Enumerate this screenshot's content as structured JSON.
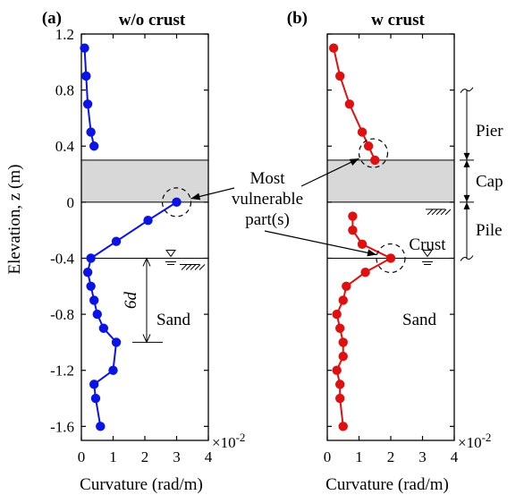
{
  "chart_data": {
    "type": "line",
    "xlabel": "Curvature (rad/m)",
    "ylabel": "Elevation, z (m)",
    "x_multiplier": "×10",
    "x_multiplier_exp": "-2",
    "xlim": [
      0,
      4
    ],
    "ylim": [
      -1.7,
      1.2
    ],
    "xticks": [
      0,
      1,
      2,
      3,
      4
    ],
    "yticks": [
      1.2,
      0.8,
      0.4,
      0,
      -0.4,
      -0.8,
      -1.2,
      -1.6
    ],
    "ytick_labels": [
      "1.2",
      "0.8",
      "0.4",
      "0",
      "-0.4",
      "-0.8",
      "-1.2",
      "-1.6"
    ],
    "xtick_labels": [
      "0",
      "1",
      "2",
      "3",
      "4"
    ],
    "cap_band": [
      0,
      0.3
    ],
    "water_level": -0.4,
    "panels": [
      {
        "label": "(a)",
        "title": "w/o crust",
        "color": "#0a14e6",
        "points": [
          [
            0.1,
            1.1
          ],
          [
            0.15,
            0.9
          ],
          [
            0.2,
            0.7
          ],
          [
            0.3,
            0.5
          ],
          [
            0.4,
            0.4
          ],
          [
            3.0,
            0.0
          ],
          [
            2.1,
            -0.13
          ],
          [
            1.1,
            -0.28
          ],
          [
            0.3,
            -0.4
          ],
          [
            0.2,
            -0.5
          ],
          [
            0.3,
            -0.6
          ],
          [
            0.4,
            -0.7
          ],
          [
            0.5,
            -0.8
          ],
          [
            0.7,
            -0.9
          ],
          [
            1.1,
            -1.0
          ],
          [
            1.0,
            -1.2
          ],
          [
            0.4,
            -1.3
          ],
          [
            0.45,
            -1.4
          ],
          [
            0.6,
            -1.6
          ]
        ]
      },
      {
        "label": "(b)",
        "title": "w crust",
        "color": "#e01010",
        "points": [
          [
            0.2,
            1.1
          ],
          [
            0.4,
            0.9
          ],
          [
            0.7,
            0.7
          ],
          [
            1.1,
            0.5
          ],
          [
            1.3,
            0.4
          ],
          [
            1.5,
            0.3
          ],
          [
            0.8,
            -0.1
          ],
          [
            0.8,
            -0.2
          ],
          [
            1.1,
            -0.3
          ],
          [
            2.0,
            -0.4
          ],
          [
            1.2,
            -0.5
          ],
          [
            0.6,
            -0.6
          ],
          [
            0.5,
            -0.7
          ],
          [
            0.3,
            -0.8
          ],
          [
            0.4,
            -0.9
          ],
          [
            0.5,
            -1.0
          ],
          [
            0.5,
            -1.1
          ],
          [
            0.3,
            -1.2
          ],
          [
            0.4,
            -1.3
          ],
          [
            0.4,
            -1.4
          ],
          [
            0.5,
            -1.6
          ]
        ]
      }
    ],
    "annotations": {
      "most_vulnerable": [
        "Most",
        "vulnerable",
        "part(s)"
      ],
      "sand": "Sand",
      "crust": "Crust",
      "six_d": "6d",
      "pier": "Pier",
      "cap": "Cap",
      "pile": "Pile"
    }
  }
}
